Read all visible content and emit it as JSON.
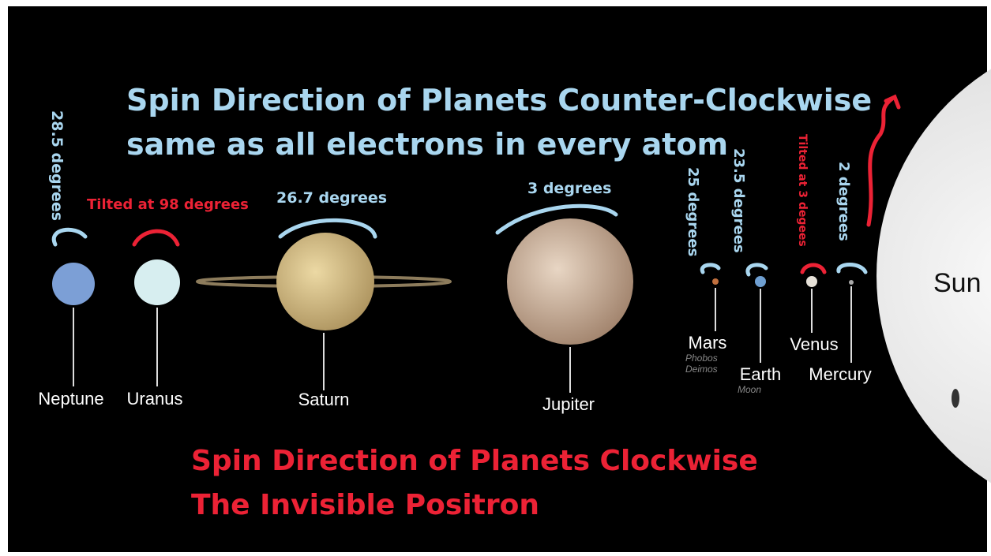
{
  "title": [
    "Spin Direction of Planets Counter-Clockwise",
    "same as all electrons in every atom"
  ],
  "footer": [
    "Spin Direction of Planets Clockwise",
    "The Invisible Positron"
  ],
  "sun": "Sun",
  "planets": [
    {
      "name": "Neptune",
      "tilt": "28.5 degrees"
    },
    {
      "name": "Uranus",
      "tilt": "Tilted at 98 degrees"
    },
    {
      "name": "Saturn",
      "tilt": "26.7 degrees"
    },
    {
      "name": "Jupiter",
      "tilt": "3 degrees"
    },
    {
      "name": "Mars",
      "tilt": "25 degrees",
      "moons": [
        "Phobos",
        "Deimos"
      ]
    },
    {
      "name": "Earth",
      "tilt": "23.5 degrees",
      "moons": [
        "Moon"
      ]
    },
    {
      "name": "Venus",
      "tilt": "Tilted at 3 degees"
    },
    {
      "name": "Mercury",
      "tilt": "2 degrees"
    }
  ]
}
